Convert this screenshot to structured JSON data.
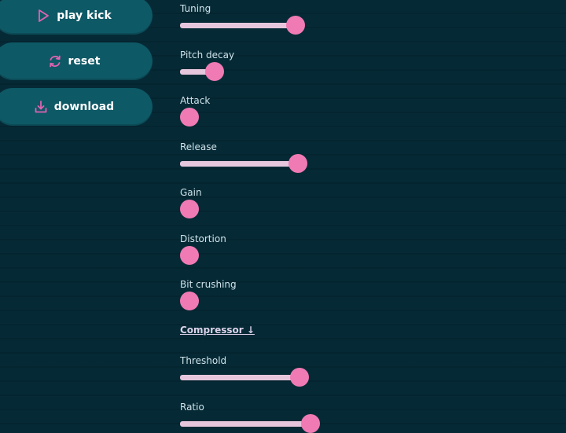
{
  "actions": {
    "play_label": "play kick",
    "reset_label": "reset",
    "download_label": "download"
  },
  "colors": {
    "background": "#052a36",
    "button": "#0e5966",
    "track": "#e6c6dc",
    "thumb": "#f07ab3",
    "icon": "#e063b0"
  },
  "params": [
    {
      "label": "Tuning",
      "value": 0.5
    },
    {
      "label": "Pitch decay",
      "value": 0.12
    },
    {
      "label": "Attack",
      "value": 0
    },
    {
      "label": "Release",
      "value": 0.51
    },
    {
      "label": "Gain",
      "value": 0
    },
    {
      "label": "Distortion",
      "value": 0
    },
    {
      "label": "Bit crushing",
      "value": 0
    }
  ],
  "compressor": {
    "title": "Compressor ↓",
    "params": [
      {
        "label": "Threshold",
        "value": 0.52
      },
      {
        "label": "Ratio",
        "value": 0.57
      }
    ]
  }
}
